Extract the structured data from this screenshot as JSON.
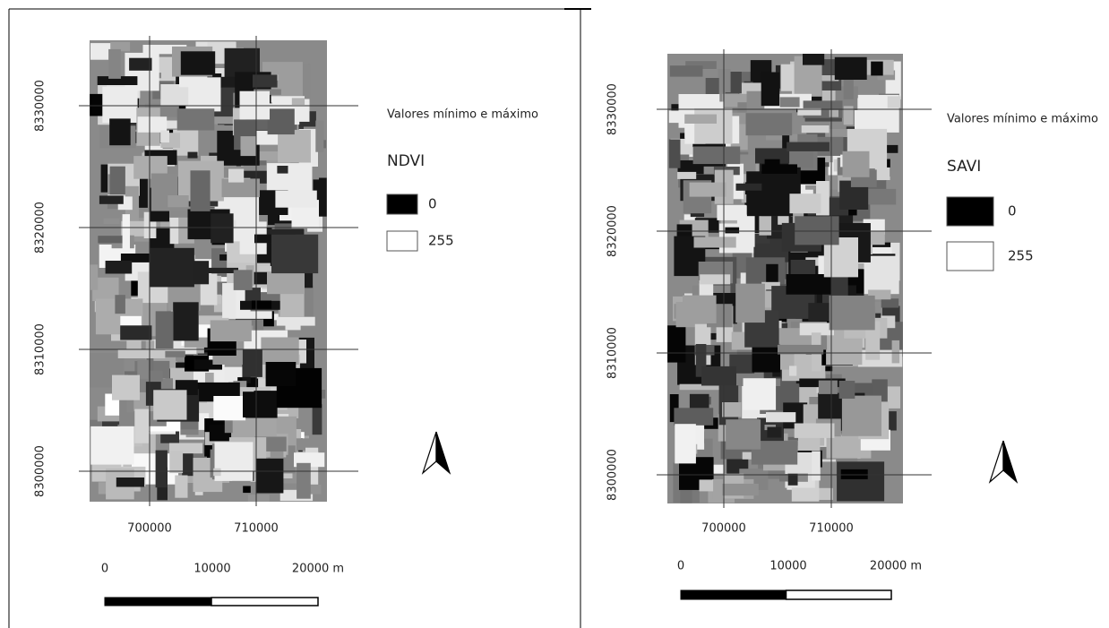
{
  "panels": [
    {
      "y_labels": [
        8330000,
        8320000,
        8310000,
        8300000
      ],
      "x_labels": [
        700000,
        710000
      ],
      "legend_heading": "Valores mínimo e máximo",
      "layer": "NDVI",
      "legend_items": [
        "0",
        "255"
      ],
      "scale_labels": [
        "0",
        "10000",
        "20000 m"
      ]
    },
    {
      "y_labels": [
        8330000,
        8320000,
        8310000,
        8300000
      ],
      "x_labels": [
        700000,
        710000
      ],
      "legend_heading": "Valores mínimo e máximo",
      "layer": "SAVI",
      "legend_items": [
        "0",
        "255"
      ],
      "scale_labels": [
        "0",
        "10000",
        "20000 m"
      ]
    }
  ]
}
